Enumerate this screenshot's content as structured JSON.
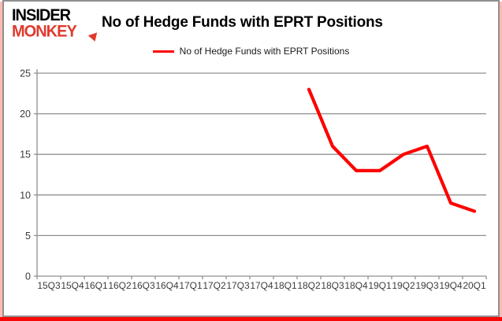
{
  "logo": {
    "line1": "INSIDER",
    "line2": "MONKEY"
  },
  "header": {
    "title": "No of Hedge Funds with EPRT Positions"
  },
  "legend": {
    "label": "No of Hedge Funds with EPRT Positions"
  },
  "colors": {
    "line": "#ff0000",
    "grid": "#909090",
    "axis_text": "#3c3c3c",
    "logo_red": "#e03a2e",
    "frame_border": "#8f8f8f",
    "frame_pink": "#ffb9b2",
    "frame_red_bottom": "#f70808"
  },
  "chart_data": {
    "type": "line",
    "title": "No of Hedge Funds with EPRT Positions",
    "categories": [
      "15Q3",
      "15Q4",
      "16Q1",
      "16Q2",
      "16Q3",
      "16Q4",
      "17Q1",
      "17Q2",
      "17Q3",
      "17Q4",
      "18Q1",
      "18Q2",
      "18Q3",
      "18Q4",
      "19Q1",
      "19Q2",
      "19Q3",
      "19Q4",
      "20Q1"
    ],
    "series": [
      {
        "name": "No of Hedge Funds with EPRT Positions",
        "color": "#ff0000",
        "values": [
          null,
          null,
          null,
          null,
          null,
          null,
          null,
          null,
          null,
          null,
          null,
          23,
          16,
          13,
          13,
          15,
          16,
          9,
          8
        ]
      }
    ],
    "ylim": [
      0,
      25
    ],
    "yticks": [
      0,
      5,
      10,
      15,
      20,
      25
    ],
    "grid": "horizontal",
    "legend_position": "top-center"
  }
}
